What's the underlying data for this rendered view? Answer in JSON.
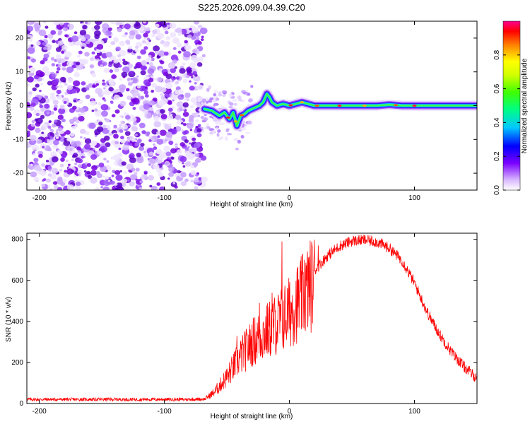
{
  "title": "S225.2026.099.04.39.C20",
  "chart_data": [
    {
      "type": "heatmap",
      "name": "spectrogram",
      "xlabel": "Height of straight line (km)",
      "ylabel": "Frequency (Hz)",
      "xlim": [
        -210,
        150
      ],
      "ylim": [
        -25,
        25
      ],
      "xticks": [
        -200,
        -100,
        0,
        100
      ],
      "yticks": [
        -20,
        -10,
        0,
        10,
        20
      ],
      "noise_region_x": [
        -210,
        -68
      ],
      "ridge": {
        "x": [
          -68,
          -62,
          -56,
          -52,
          -48,
          -45,
          -42,
          -39,
          -36,
          -33,
          -30,
          -27,
          -24,
          -21,
          -18,
          -16,
          -14,
          -12,
          -10,
          -5,
          0,
          5,
          10,
          15,
          20,
          30,
          40,
          50,
          60,
          70,
          80,
          90,
          100,
          120,
          150
        ],
        "y": [
          -1,
          -1.5,
          -3,
          -2,
          -4,
          -2,
          -6,
          -3,
          -2.5,
          -1.5,
          -1,
          -0.5,
          0,
          1,
          3.5,
          2.5,
          1,
          0.5,
          0,
          0.5,
          0,
          0.5,
          1,
          0.5,
          0,
          0,
          0,
          0,
          0,
          0,
          0.3,
          0,
          0,
          0,
          0
        ]
      },
      "colorbar": {
        "label": "Normalized spectral amplitude",
        "range": [
          0,
          1
        ],
        "ticks": [
          "0.0",
          "0.2",
          "0.4",
          "0.6",
          "0.8"
        ],
        "tick_values": [
          0,
          0.2,
          0.4,
          0.6,
          0.8
        ]
      }
    },
    {
      "type": "line",
      "name": "snr",
      "xlabel": "Height of straight line (km)",
      "ylabel": "SNR (10 * v/v)",
      "xlim": [
        -210,
        150
      ],
      "ylim": [
        0,
        830
      ],
      "xticks": [
        -200,
        -100,
        0,
        100
      ],
      "yticks": [
        0,
        200,
        400,
        600,
        800
      ],
      "color": "#ff0000",
      "envelope": {
        "x": [
          -210,
          -80,
          -68,
          -60,
          -50,
          -40,
          -30,
          -20,
          -10,
          0,
          10,
          20,
          30,
          40,
          50,
          60,
          70,
          80,
          90,
          100,
          110,
          120,
          130,
          140,
          150
        ],
        "y": [
          20,
          20,
          22,
          60,
          140,
          240,
          320,
          370,
          420,
          480,
          560,
          650,
          720,
          770,
          795,
          800,
          790,
          760,
          700,
          590,
          450,
          340,
          250,
          180,
          125
        ]
      },
      "spikes": [
        {
          "x": -42,
          "y": 330
        },
        {
          "x": -24,
          "y": 490
        },
        {
          "x": -14,
          "y": 540
        },
        {
          "x": -6,
          "y": 790
        },
        {
          "x": 12,
          "y": 700
        },
        {
          "x": 23,
          "y": 770
        }
      ]
    }
  ]
}
